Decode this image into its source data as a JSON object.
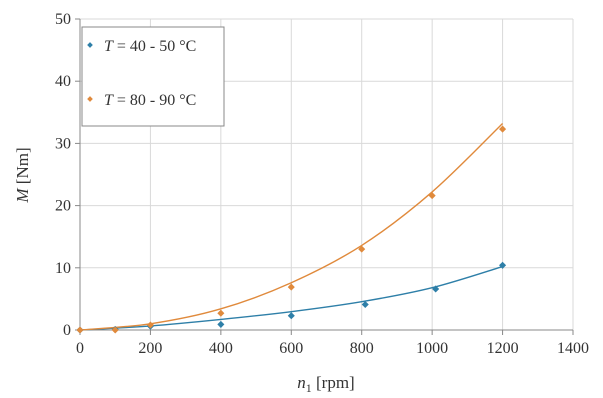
{
  "chart_data": {
    "type": "scatter",
    "title": "",
    "xlabel": {
      "var": "n",
      "sub": "1",
      "unit": " [rpm]"
    },
    "ylabel": {
      "var": "M",
      "unit": " [Nm]"
    },
    "xlim": [
      0,
      1400
    ],
    "ylim": [
      0,
      50
    ],
    "xticks": [
      0,
      200,
      400,
      600,
      800,
      1000,
      1200,
      1400
    ],
    "yticks": [
      0,
      10,
      20,
      30,
      40,
      50
    ],
    "grid": true,
    "legend_position": "top-left",
    "series": [
      {
        "var": "T",
        "label_rest": " = 40 - 50 °C",
        "color": "#2e7fa8",
        "points": [
          [
            0,
            0.0
          ],
          [
            100,
            0.1
          ],
          [
            200,
            0.6
          ],
          [
            400,
            0.9
          ],
          [
            600,
            2.3
          ],
          [
            810,
            4.1
          ],
          [
            1010,
            6.6
          ],
          [
            1200,
            10.4
          ]
        ],
        "trend": [
          [
            0,
            0.0
          ],
          [
            200,
            0.65
          ],
          [
            400,
            1.7
          ],
          [
            600,
            2.95
          ],
          [
            800,
            4.55
          ],
          [
            1000,
            6.8
          ],
          [
            1200,
            10.2
          ]
        ]
      },
      {
        "var": "T",
        "label_rest": " = 80 - 90 °C",
        "color": "#e08a3c",
        "points": [
          [
            0,
            0.0
          ],
          [
            100,
            0.0
          ],
          [
            200,
            0.8
          ],
          [
            400,
            2.7
          ],
          [
            600,
            6.9
          ],
          [
            800,
            13.0
          ],
          [
            1000,
            21.6
          ],
          [
            1200,
            32.3
          ]
        ],
        "trend": [
          [
            0,
            0.0
          ],
          [
            200,
            1.0
          ],
          [
            400,
            3.4
          ],
          [
            600,
            7.6
          ],
          [
            800,
            13.6
          ],
          [
            1000,
            22.2
          ],
          [
            1200,
            33.2
          ]
        ]
      }
    ]
  }
}
